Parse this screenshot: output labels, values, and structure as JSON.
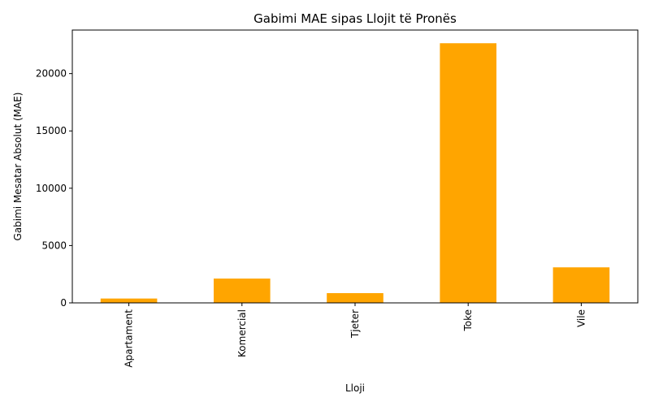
{
  "chart_data": {
    "type": "bar",
    "title": "Gabimi MAE sipas Llojit të Pronës",
    "xlabel": "Lloji",
    "ylabel": "Gabimi Mesatar Absolut (MAE)",
    "categories": [
      "Apartament",
      "Komercial",
      "Tjeter",
      "Toke",
      "Vile"
    ],
    "values": [
      380,
      2120,
      850,
      22650,
      3100
    ],
    "ylim": [
      0,
      23800
    ],
    "yticks": [
      0,
      5000,
      10000,
      15000,
      20000
    ],
    "grid": false,
    "legend": "none",
    "bar_color": "#FFA500",
    "axis_color": "#000000"
  }
}
